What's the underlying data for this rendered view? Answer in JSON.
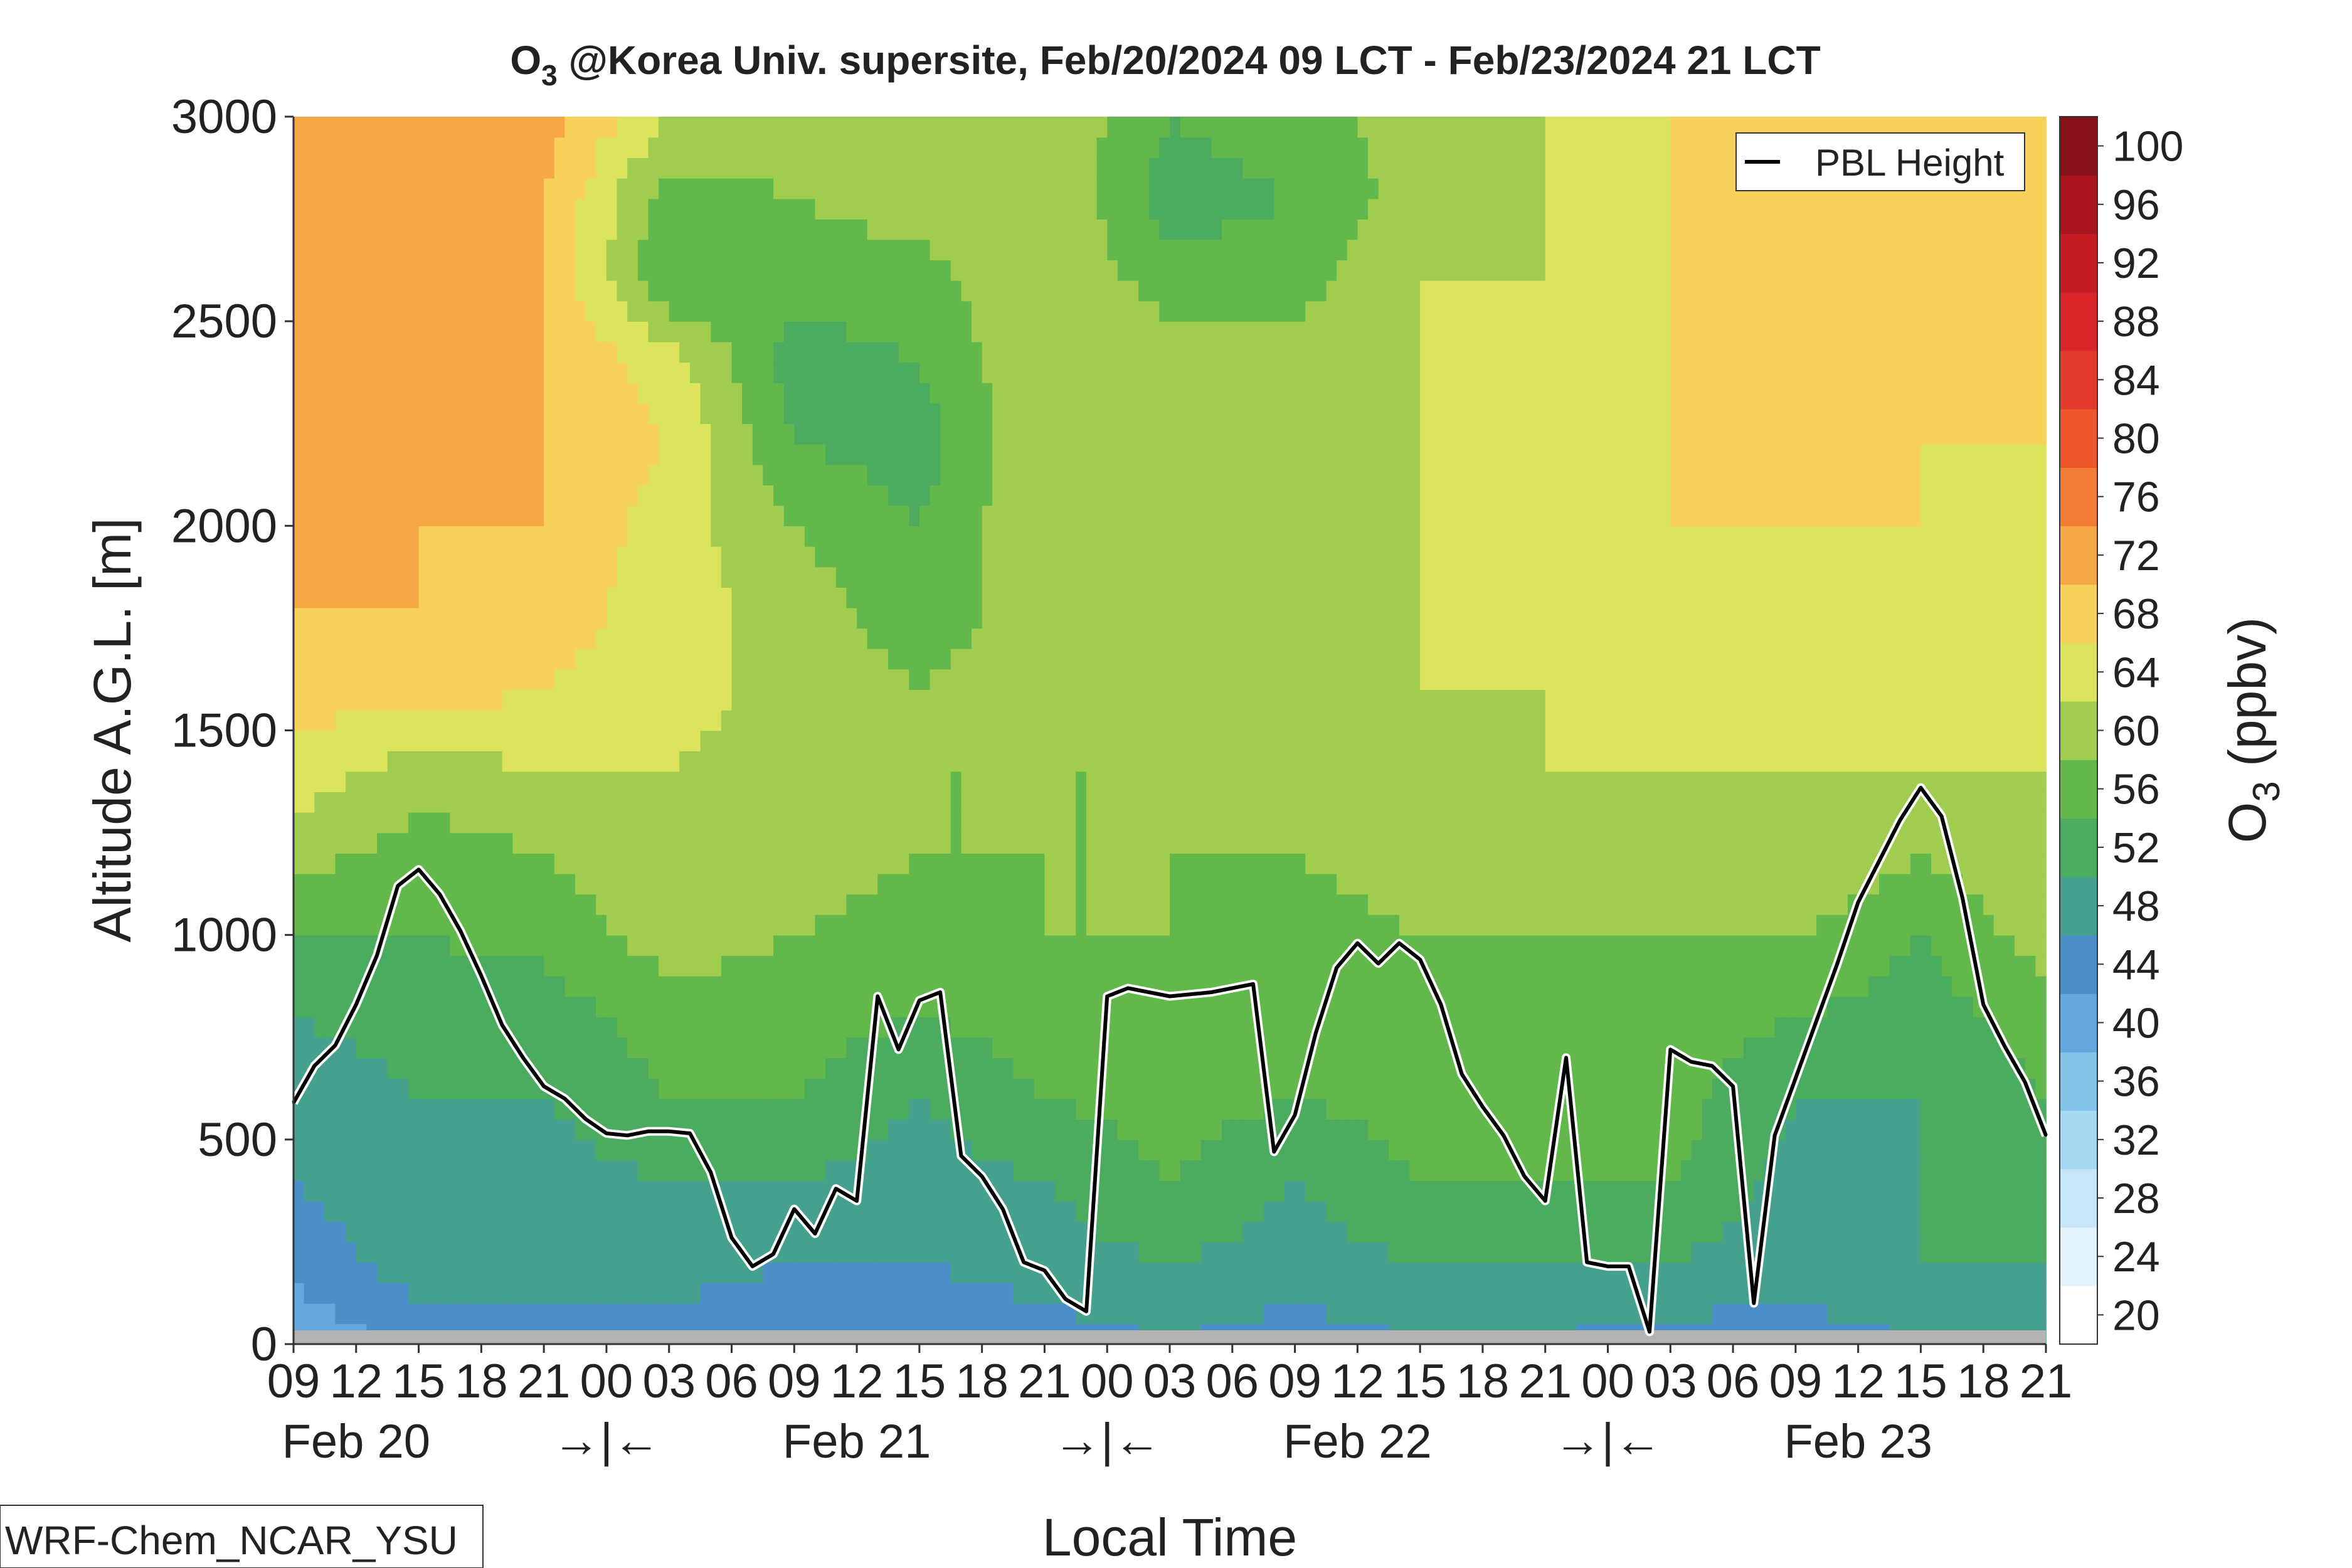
{
  "chart_data": {
    "type": "heatmap",
    "title": "O₃ @Korea Univ. supersite, Feb/20/2024 09 LCT - Feb/23/2024 21 LCT",
    "title_parts": {
      "main": "O",
      "subscript": "3",
      "rest": " @Korea Univ. supersite, Feb/20/2024 09 LCT - Feb/23/2024 21 LCT"
    },
    "xlabel": "Local Time",
    "ylabel": "Altitude A.G.L. [m]",
    "ylim": [
      0,
      3000
    ],
    "yticks": [
      0,
      500,
      1000,
      1500,
      2000,
      2500,
      3000
    ],
    "x_hour_ticks": [
      "09",
      "12",
      "15",
      "18",
      "21",
      "00",
      "03",
      "06",
      "09",
      "12",
      "15",
      "18",
      "21",
      "00",
      "03",
      "06",
      "09",
      "12",
      "15",
      "18",
      "21",
      "00",
      "03",
      "06",
      "09",
      "12",
      "15",
      "18",
      "21"
    ],
    "day_labels": [
      "Feb 20",
      "Feb 21",
      "Feb 22",
      "Feb 23"
    ],
    "midnight_marker": "→|←",
    "colorbar": {
      "label_main": "O",
      "label_subscript": "3",
      "label_rest": " (ppbv)",
      "levels": [
        20,
        24,
        28,
        32,
        36,
        40,
        44,
        48,
        52,
        56,
        60,
        64,
        68,
        72,
        76,
        80,
        84,
        88,
        92,
        96,
        100
      ],
      "colors": [
        "#ffffff",
        "#e4f3fb",
        "#c7e6f6",
        "#a5d8f1",
        "#82c3ea",
        "#62a8dc",
        "#4a8fc7",
        "#45a18e",
        "#4bab5e",
        "#62b84a",
        "#a0cc50",
        "#dce35c",
        "#f8d05a",
        "#f6a746",
        "#f27b35",
        "#eb562b",
        "#e33b2b",
        "#d82528",
        "#c41c25",
        "#a8151f",
        "#86111a"
      ]
    },
    "ozone_profiles": {
      "altitudes_m": [
        0,
        200,
        400,
        600,
        800,
        1000,
        1200,
        1400,
        1600,
        1800,
        2000,
        2200,
        2400,
        2600,
        2800,
        3000
      ],
      "hours_from_start": [
        0,
        6,
        12,
        18,
        24,
        30,
        36,
        42,
        48,
        54,
        60,
        66,
        72,
        78,
        84
      ],
      "values_ppbv": [
        [
          40,
          46,
          48,
          49,
          52,
          56,
          62,
          66,
          70,
          72,
          72,
          72,
          72,
          72,
          72,
          72
        ],
        [
          46,
          50,
          50,
          52,
          54,
          56,
          58,
          62,
          70,
          72,
          72,
          72,
          72,
          72,
          72,
          72
        ],
        [
          46,
          50,
          50,
          52,
          54,
          57,
          60,
          64,
          68,
          70,
          72,
          72,
          72,
          72,
          72,
          74
        ],
        [
          46,
          50,
          52,
          56,
          58,
          62,
          64,
          64,
          66,
          66,
          66,
          68,
          66,
          56,
          58,
          64
        ],
        [
          44,
          48,
          52,
          56,
          58,
          60,
          62,
          62,
          62,
          62,
          60,
          56,
          54,
          58,
          60,
          62
        ],
        [
          44,
          48,
          50,
          52,
          56,
          58,
          60,
          60,
          60,
          58,
          56,
          54,
          56,
          58,
          62,
          64
        ],
        [
          46,
          50,
          52,
          56,
          58,
          60,
          60,
          60,
          62,
          62,
          64,
          64,
          64,
          64,
          64,
          64
        ],
        [
          48,
          52,
          56,
          58,
          58,
          60,
          60,
          60,
          60,
          60,
          60,
          62,
          62,
          58,
          54,
          56
        ],
        [
          46,
          50,
          52,
          56,
          58,
          58,
          60,
          62,
          62,
          62,
          62,
          64,
          62,
          58,
          56,
          58
        ],
        [
          48,
          52,
          56,
          58,
          60,
          60,
          62,
          62,
          64,
          64,
          64,
          64,
          64,
          64,
          62,
          62
        ],
        [
          48,
          52,
          56,
          58,
          58,
          60,
          62,
          64,
          64,
          64,
          64,
          64,
          64,
          64,
          64,
          64
        ],
        [
          46,
          52,
          56,
          58,
          58,
          60,
          62,
          64,
          64,
          66,
          68,
          68,
          68,
          68,
          68,
          68
        ],
        [
          46,
          50,
          50,
          52,
          56,
          60,
          64,
          64,
          66,
          68,
          68,
          68,
          70,
          72,
          72,
          72
        ],
        [
          48,
          52,
          52,
          52,
          54,
          56,
          60,
          64,
          64,
          66,
          68,
          68,
          68,
          68,
          68,
          70
        ],
        [
          50,
          52,
          54,
          56,
          58,
          62,
          64,
          64,
          66,
          66,
          66,
          68,
          68,
          68,
          68,
          68
        ]
      ]
    },
    "series": [
      {
        "name": "PBL Height",
        "color": "#000000",
        "x_hours": [
          0,
          1,
          2,
          3,
          4,
          5,
          6,
          7,
          8,
          9,
          10,
          11,
          12,
          13,
          14,
          15,
          16,
          17,
          18,
          19,
          20,
          21,
          22,
          23,
          24,
          25,
          26,
          27,
          28,
          29,
          30,
          31,
          32,
          33,
          34,
          35,
          36,
          37,
          38,
          39,
          40,
          42,
          44,
          46,
          47,
          48,
          49,
          50,
          51,
          52,
          53,
          54,
          55,
          56,
          57,
          58,
          59,
          60,
          61,
          62,
          63,
          64,
          65,
          66,
          67,
          68,
          69,
          70,
          71,
          72,
          73,
          74,
          75,
          76,
          77,
          78,
          79,
          80,
          81,
          82,
          83,
          84
        ],
        "y_m": [
          590,
          680,
          730,
          830,
          950,
          1120,
          1160,
          1100,
          1010,
          900,
          780,
          700,
          630,
          600,
          550,
          515,
          510,
          520,
          520,
          515,
          420,
          260,
          190,
          220,
          330,
          270,
          380,
          350,
          850,
          720,
          840,
          860,
          460,
          410,
          330,
          200,
          180,
          110,
          80,
          850,
          870,
          850,
          860,
          880,
          470,
          560,
          760,
          920,
          980,
          930,
          980,
          940,
          830,
          660,
          580,
          510,
          410,
          350,
          700,
          200,
          190,
          190,
          30,
          720,
          690,
          680,
          630,
          100,
          510,
          650,
          790,
          930,
          1080,
          1180,
          1280,
          1360,
          1290,
          1090,
          830,
          730,
          640,
          510
        ]
      }
    ],
    "legend": {
      "label": "PBL Height",
      "position": "top-right"
    },
    "model_label": "WRF-Chem_NCAR_YSU"
  }
}
